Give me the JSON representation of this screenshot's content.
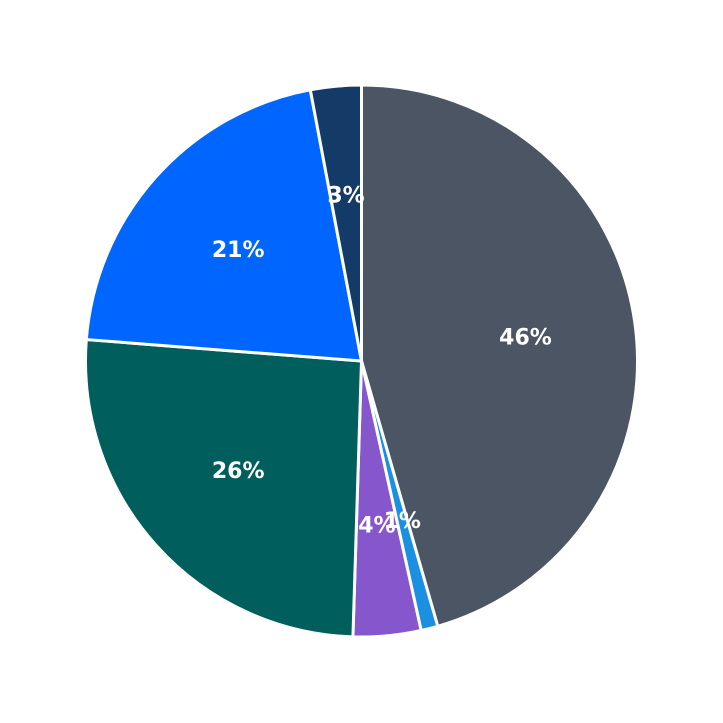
{
  "chart_data": {
    "type": "pie",
    "title": "",
    "start_angle_deg": 90,
    "direction": "clockwise",
    "slices": [
      {
        "value": 46,
        "label": "46%",
        "color": "#4B5563"
      },
      {
        "value": 1,
        "label": "1%",
        "color": "#1B8FE0"
      },
      {
        "value": 4,
        "label": "4%",
        "color": "#8656CC"
      },
      {
        "value": 26,
        "label": "26%",
        "color": "#005E5C"
      },
      {
        "value": 21,
        "label": "21%",
        "color": "#0066FF"
      },
      {
        "value": 3,
        "label": "3%",
        "color": "#143A68"
      }
    ]
  }
}
